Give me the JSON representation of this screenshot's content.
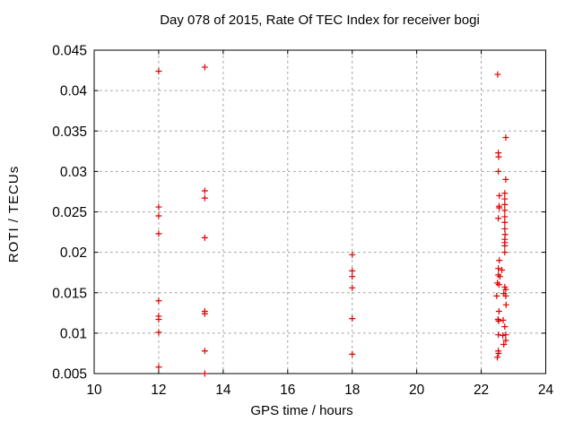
{
  "chart_data": {
    "type": "scatter",
    "title": "Day 078 of 2015, Rate Of TEC Index for receiver bogi",
    "xlabel": "GPS time / hours",
    "ylabel": "ROTI / TECUs",
    "xlim": [
      10,
      24
    ],
    "ylim": [
      0.005,
      0.045
    ],
    "xticks": {
      "values": [
        10,
        12,
        14,
        16,
        18,
        20,
        22,
        24
      ],
      "labels": [
        "10",
        "12",
        "14",
        "16",
        "18",
        "20",
        "22",
        "24"
      ]
    },
    "yticks": {
      "values": [
        0.005,
        0.01,
        0.015,
        0.02,
        0.025,
        0.03,
        0.035,
        0.04,
        0.045
      ],
      "labels": [
        "0.005",
        "0.01",
        "0.015",
        "0.02",
        "0.025",
        "0.03",
        "0.035",
        "0.04",
        "0.045"
      ]
    },
    "grid": true,
    "legend_position": "none",
    "marker": {
      "glyph": "plus",
      "color": "#e10000",
      "size": 7
    },
    "colors": {
      "axis": "#000000",
      "grid": "#9e9e9e",
      "text": "#000000",
      "background": "#ffffff"
    },
    "series": [
      {
        "name": "ROTI",
        "points": [
          [
            12.0,
            0.0424
          ],
          [
            12.0,
            0.0256
          ],
          [
            12.0,
            0.0245
          ],
          [
            12.0,
            0.0223
          ],
          [
            12.0,
            0.014
          ],
          [
            12.0,
            0.0121
          ],
          [
            12.0,
            0.0117
          ],
          [
            12.0,
            0.0101
          ],
          [
            12.0,
            0.0058
          ],
          [
            13.43,
            0.0429
          ],
          [
            13.43,
            0.0276
          ],
          [
            13.43,
            0.0267
          ],
          [
            13.43,
            0.0218
          ],
          [
            13.43,
            0.0127
          ],
          [
            13.43,
            0.0124
          ],
          [
            13.43,
            0.0078
          ],
          [
            13.43,
            0.005
          ],
          [
            18.0,
            0.0197
          ],
          [
            18.0,
            0.0177
          ],
          [
            18.0,
            0.017
          ],
          [
            18.0,
            0.0156
          ],
          [
            18.0,
            0.0118
          ],
          [
            18.0,
            0.0074
          ],
          [
            22.51,
            0.042
          ],
          [
            22.76,
            0.0342
          ],
          [
            22.53,
            0.0323
          ],
          [
            22.54,
            0.0318
          ],
          [
            22.53,
            0.03
          ],
          [
            22.76,
            0.029
          ],
          [
            22.73,
            0.0273
          ],
          [
            22.56,
            0.027
          ],
          [
            22.73,
            0.0266
          ],
          [
            22.73,
            0.0259
          ],
          [
            22.55,
            0.0257
          ],
          [
            22.56,
            0.0255
          ],
          [
            22.73,
            0.0252
          ],
          [
            22.73,
            0.0244
          ],
          [
            22.53,
            0.0242
          ],
          [
            22.73,
            0.0237
          ],
          [
            22.73,
            0.0229
          ],
          [
            22.74,
            0.0222
          ],
          [
            22.73,
            0.0216
          ],
          [
            22.73,
            0.0212
          ],
          [
            22.73,
            0.0208
          ],
          [
            22.73,
            0.02
          ],
          [
            22.56,
            0.019
          ],
          [
            22.53,
            0.018
          ],
          [
            22.64,
            0.0178
          ],
          [
            22.53,
            0.0172
          ],
          [
            22.58,
            0.017
          ],
          [
            22.5,
            0.0162
          ],
          [
            22.55,
            0.016
          ],
          [
            22.73,
            0.0157
          ],
          [
            22.76,
            0.0154
          ],
          [
            22.7,
            0.0149
          ],
          [
            22.48,
            0.0146
          ],
          [
            22.76,
            0.0146
          ],
          [
            22.77,
            0.0135
          ],
          [
            22.55,
            0.0127
          ],
          [
            22.52,
            0.0117
          ],
          [
            22.54,
            0.0115
          ],
          [
            22.68,
            0.0116
          ],
          [
            22.73,
            0.0108
          ],
          [
            22.53,
            0.0098
          ],
          [
            22.67,
            0.0097
          ],
          [
            22.76,
            0.0098
          ],
          [
            22.76,
            0.0091
          ],
          [
            22.7,
            0.0086
          ],
          [
            22.53,
            0.0078
          ],
          [
            22.54,
            0.0075
          ],
          [
            22.5,
            0.007
          ]
        ]
      }
    ]
  }
}
